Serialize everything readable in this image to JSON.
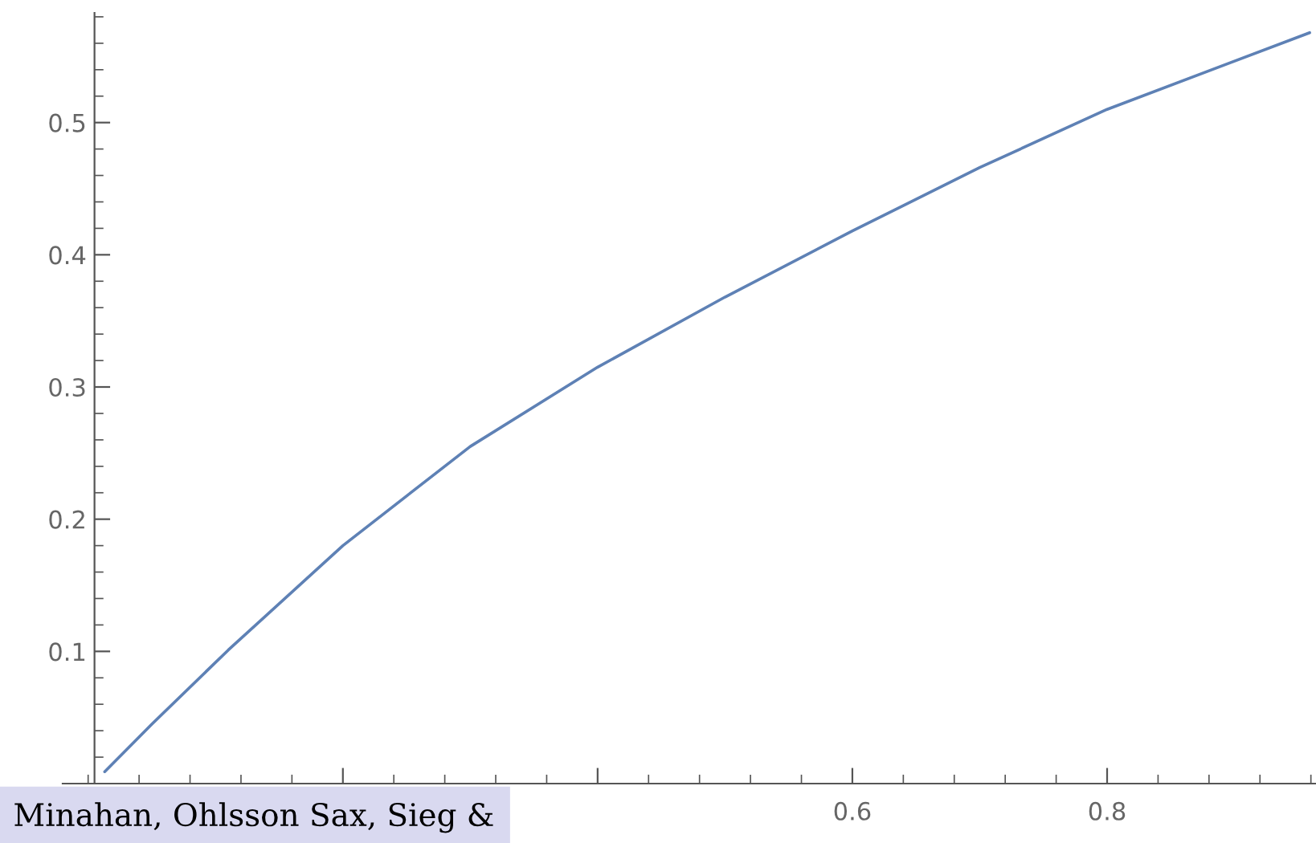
{
  "chart_data": {
    "type": "line",
    "x": [
      0.013,
      0.05,
      0.11,
      0.2,
      0.3,
      0.4,
      0.5,
      0.6,
      0.7,
      0.8,
      0.959
    ],
    "series": [
      {
        "color": "#5e81b5",
        "values": [
          0.009,
          0.045,
          0.101,
          0.18,
          0.255,
          0.315,
          0.368,
          0.418,
          0.466,
          0.51,
          0.568
        ]
      }
    ],
    "xlim": [
      -0.02,
      0.964
    ],
    "ylim": [
      0,
      0.583
    ],
    "xticks": [
      {
        "value": 0.2,
        "label": null
      },
      {
        "value": 0.4,
        "label": null
      },
      0.6,
      0.8
    ],
    "yticks": [
      0.1,
      0.2,
      0.3,
      0.4,
      0.5
    ],
    "grid": false,
    "legend": false,
    "marker": "none",
    "line_style": "solid",
    "annotations": [
      "Minahan, Ohlsson Sax, Sieg &"
    ]
  }
}
